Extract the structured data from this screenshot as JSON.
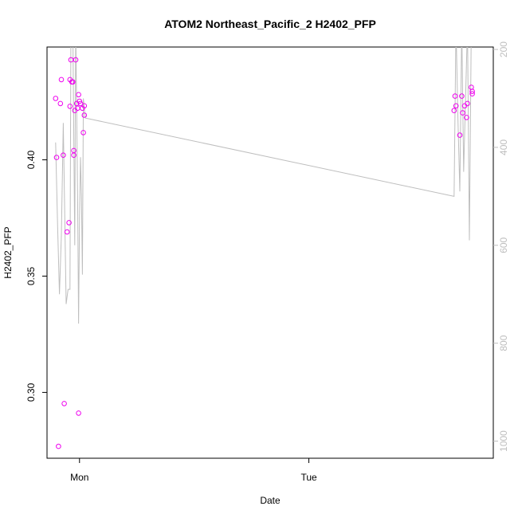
{
  "chart_data": {
    "type": "scatter",
    "title": "ATOM2 Northeast_Pacific_2 H2402_PFP",
    "xlabel": "Date",
    "ylabel": "H2402_PFP",
    "x_ticks": [
      {
        "label": "Mon",
        "value": 0
      },
      {
        "label": "Tue",
        "value": 24
      }
    ],
    "y_ticks": [
      0.3,
      0.35,
      0.4
    ],
    "y2_ticks": [
      200,
      400,
      600,
      800,
      1000
    ],
    "xlim": [
      -3.4,
      43.3
    ],
    "ylim": [
      0.2717,
      0.4485
    ],
    "y2lim": [
      1035,
      195
    ],
    "colors": {
      "points": "#ee00ee",
      "line": "#bebebe",
      "right_axis": "#bebebe"
    },
    "series": [
      {
        "kind": "points",
        "values": [
          [
            -2.5,
            0.4264
          ],
          [
            -2.4,
            0.401
          ],
          [
            -2.2,
            0.2768
          ],
          [
            -2.0,
            0.4242
          ],
          [
            -1.9,
            0.4345
          ],
          [
            -1.7,
            0.402
          ],
          [
            -1.6,
            0.2952
          ],
          [
            -1.3,
            0.369
          ],
          [
            -1.1,
            0.373
          ],
          [
            -1.0,
            0.423
          ],
          [
            -1.0,
            0.4345
          ],
          [
            -0.9,
            0.443
          ],
          [
            -0.8,
            0.4335
          ],
          [
            -0.7,
            0.4335
          ],
          [
            -0.6,
            0.404
          ],
          [
            -0.6,
            0.402
          ],
          [
            -0.5,
            0.4212
          ],
          [
            -0.4,
            0.443
          ],
          [
            -0.3,
            0.4242
          ],
          [
            -0.2,
            0.4222
          ],
          [
            -0.1,
            0.428
          ],
          [
            -0.1,
            0.2911
          ],
          [
            0.0,
            0.4252
          ],
          [
            0.1,
            0.4242
          ],
          [
            0.3,
            0.4222
          ],
          [
            0.4,
            0.4117
          ],
          [
            0.5,
            0.4232
          ],
          [
            0.5,
            0.4192
          ],
          [
            39.2,
            0.4212
          ],
          [
            39.3,
            0.4274
          ],
          [
            39.4,
            0.4232
          ],
          [
            39.8,
            0.4106
          ],
          [
            40.0,
            0.4274
          ],
          [
            40.1,
            0.4202
          ],
          [
            40.3,
            0.4232
          ],
          [
            40.5,
            0.4182
          ],
          [
            40.6,
            0.4242
          ],
          [
            41.0,
            0.4312
          ],
          [
            41.1,
            0.4284
          ],
          [
            41.1,
            0.4294
          ]
        ]
      },
      {
        "kind": "line",
        "axis": "right",
        "values": [
          [
            -2.5,
            390
          ],
          [
            -2.3,
            555
          ],
          [
            -2.1,
            700
          ],
          [
            -1.9,
            580
          ],
          [
            -1.7,
            350
          ],
          [
            -1.4,
            720
          ],
          [
            -1.2,
            690
          ],
          [
            -1.0,
            690
          ],
          [
            -0.9,
            150
          ],
          [
            -0.7,
            150
          ],
          [
            -0.5,
            600
          ],
          [
            -0.4,
            150
          ],
          [
            -0.2,
            500
          ],
          [
            -0.1,
            760
          ],
          [
            0.0,
            540
          ],
          [
            0.1,
            420
          ],
          [
            0.2,
            500
          ],
          [
            0.3,
            660
          ],
          [
            0.4,
            300
          ],
          [
            0.6,
            340
          ],
          [
            39.2,
            500
          ],
          [
            39.4,
            150
          ],
          [
            39.6,
            340
          ],
          [
            39.8,
            490
          ],
          [
            40.0,
            150
          ],
          [
            40.2,
            450
          ],
          [
            40.6,
            150
          ],
          [
            40.8,
            590
          ],
          [
            41.0,
            150
          ]
        ]
      }
    ]
  }
}
